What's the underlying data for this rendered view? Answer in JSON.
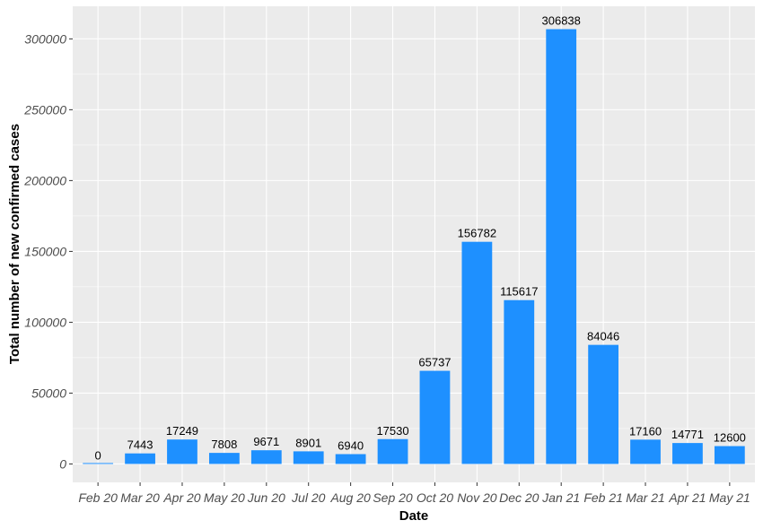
{
  "chart_data": {
    "type": "bar",
    "title": "",
    "xlabel": "Date",
    "ylabel": "Total number of new confirmed cases",
    "categories": [
      "Feb 20",
      "Mar 20",
      "Apr 20",
      "May 20",
      "Jun 20",
      "Jul 20",
      "Aug 20",
      "Sep 20",
      "Oct 20",
      "Nov 20",
      "Dec 20",
      "Jan 21",
      "Feb 21",
      "Mar 21",
      "Apr 21",
      "May 21"
    ],
    "values": [
      0,
      7443,
      17249,
      7808,
      9671,
      8901,
      6940,
      17530,
      65737,
      156782,
      115617,
      306838,
      84046,
      17160,
      14771,
      12600
    ],
    "data_labels": [
      "0",
      "7443",
      "17249",
      "7808",
      "9671",
      "8901",
      "6940",
      "17530",
      "65737",
      "156782",
      "115617",
      "306838",
      "84046",
      "17160",
      "14771",
      "12600"
    ],
    "y_ticks": [
      0,
      50000,
      100000,
      150000,
      200000,
      250000,
      300000
    ],
    "y_tick_labels": [
      "0",
      "50000",
      "100000",
      "150000",
      "200000",
      "250000",
      "300000"
    ],
    "ylim": [
      -13000,
      323000
    ],
    "grid": true,
    "legend": "none",
    "colors": {
      "bar": "#1E90FF",
      "panel": "#EBEBEB",
      "grid": "#FFFFFF"
    }
  }
}
